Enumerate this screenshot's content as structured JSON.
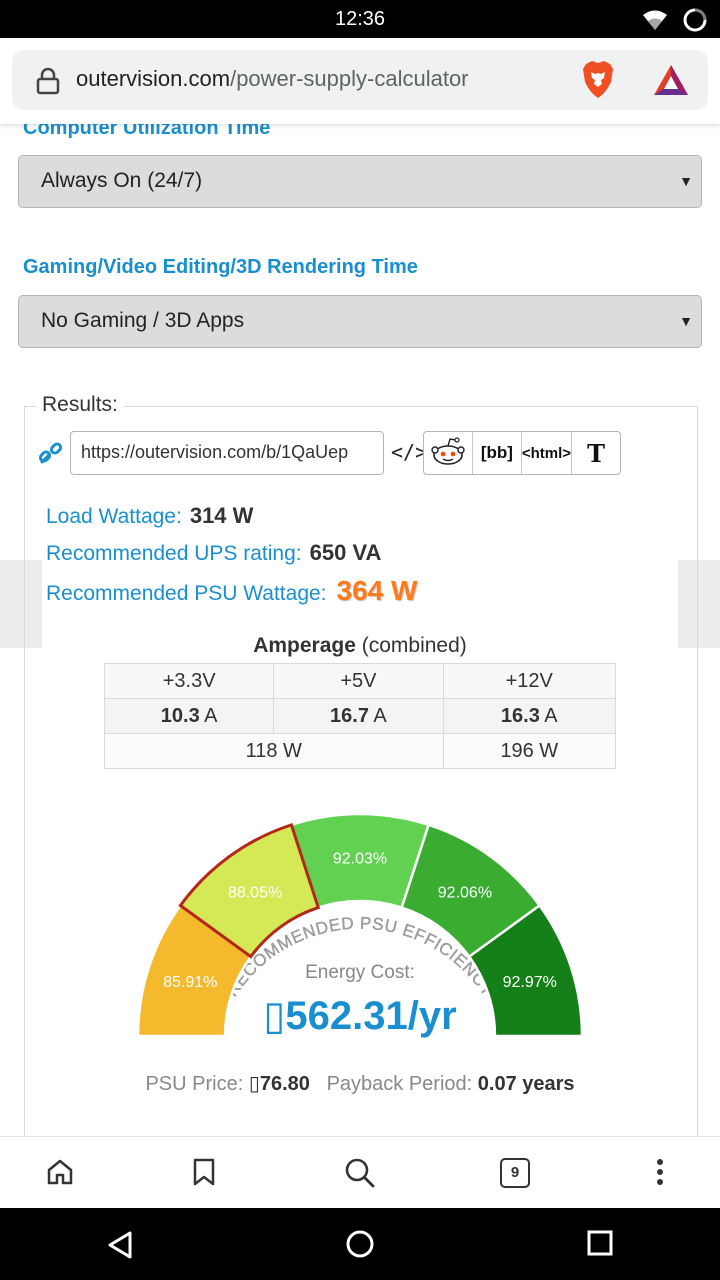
{
  "status_bar": {
    "time": "12:36"
  },
  "browser": {
    "url_domain": "outervision.com",
    "url_path": "/power-supply-calculator",
    "tab_count": "9"
  },
  "form": {
    "utilization": {
      "label": "Computer Utilization Time",
      "value": "Always On (24/7)"
    },
    "gaming": {
      "label": "Gaming/Video Editing/3D Rendering Time",
      "value": "No Gaming / 3D Apps"
    }
  },
  "results": {
    "legend": "Results:",
    "share_url": "https://outervision.com/b/1QaUep",
    "share_buttons": {
      "bb": "[bb]",
      "html": "<html>",
      "t": "T"
    },
    "load_wattage": {
      "label": "Load Wattage:",
      "value": "314 W"
    },
    "ups_rating": {
      "label": "Recommended UPS rating:",
      "value": "650 VA"
    },
    "psu_wattage": {
      "label": "Recommended PSU Wattage:",
      "value": "364 W"
    }
  },
  "amperage": {
    "title_bold": "Amperage",
    "title_rest": " (combined)",
    "rails": [
      {
        "name": "+3.3V",
        "amps": "10.3",
        "unit": "A"
      },
      {
        "name": "+5V",
        "amps": "16.7",
        "unit": "A"
      },
      {
        "name": "+12V",
        "amps": "16.3",
        "unit": "A"
      }
    ],
    "watts_combined": "118 W",
    "watts_12v": "196 W"
  },
  "gauge": {
    "arc_title": "RECOMMENDED PSU EFFICIENCY",
    "segments": [
      {
        "label": "85.91%",
        "color": "#f4b92c"
      },
      {
        "label": "88.05%",
        "color": "#d5e856"
      },
      {
        "label": "92.03%",
        "color": "#62d152"
      },
      {
        "label": "92.06%",
        "color": "#3aac32"
      },
      {
        "label": "92.97%",
        "color": "#158019"
      }
    ],
    "selected_index": 1,
    "selected_outline_color": "#b2281a"
  },
  "energy": {
    "label": "Energy Cost:",
    "value": "562.31/yr"
  },
  "footer": {
    "psu_price_label": "PSU Price:",
    "psu_price_value": "76.80",
    "payback_label": "Payback Period:",
    "payback_value": "0.07 years"
  },
  "colors": {
    "accent_blue": "#1a8fcf",
    "psu_orange": "#ff7a1a"
  }
}
